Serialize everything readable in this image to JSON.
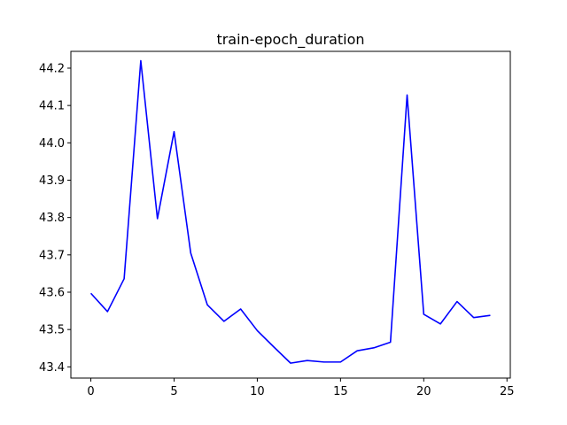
{
  "chart_data": {
    "type": "line",
    "title": "train-epoch_duration",
    "xlabel": "",
    "ylabel": "",
    "xlim": [
      -1.2,
      25.2
    ],
    "ylim": [
      43.37,
      44.245
    ],
    "x_ticks": [
      0,
      5,
      10,
      15,
      20,
      25
    ],
    "y_ticks": [
      43.4,
      43.5,
      43.6,
      43.7,
      43.8,
      43.9,
      44.0,
      44.1,
      44.2
    ],
    "grid": false,
    "colors": {
      "line": "#0000ff"
    },
    "series": [
      {
        "x": [
          0,
          1,
          2,
          3,
          4,
          5,
          6,
          7,
          8,
          9,
          10,
          11,
          12,
          13,
          14,
          15,
          16,
          17,
          18,
          19,
          20,
          21,
          22,
          23,
          24
        ],
        "values": [
          43.597,
          43.548,
          43.636,
          44.22,
          43.797,
          44.03,
          43.705,
          43.566,
          43.522,
          43.555,
          43.497,
          43.453,
          43.41,
          43.417,
          43.413,
          43.413,
          43.443,
          43.451,
          43.466,
          44.128,
          43.541,
          43.515,
          43.575,
          43.532,
          43.538
        ]
      }
    ]
  }
}
